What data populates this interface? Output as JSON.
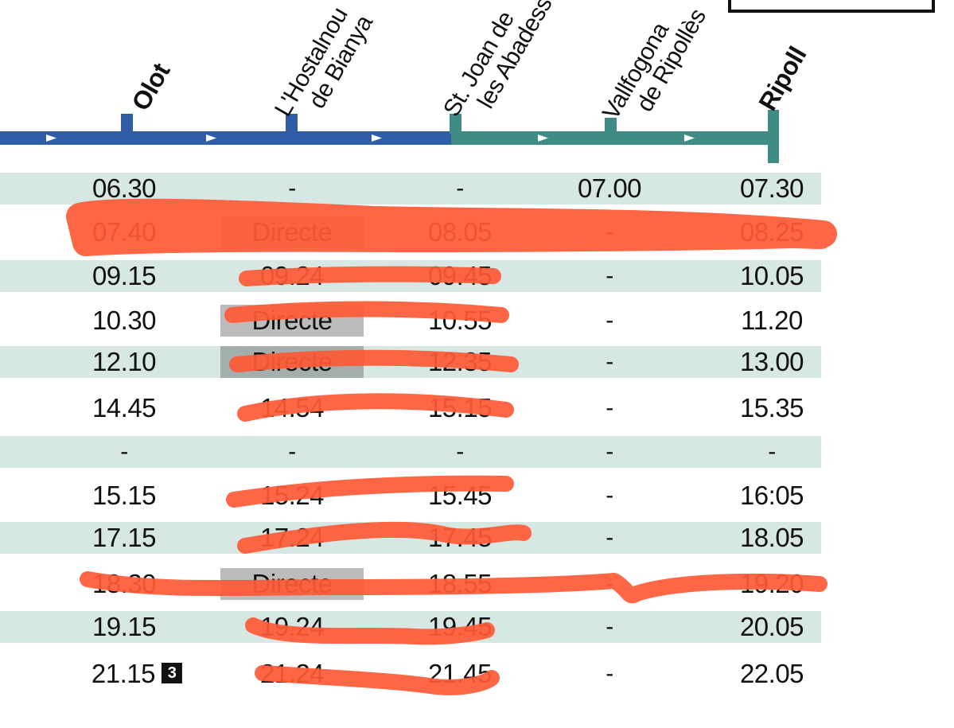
{
  "stations": [
    {
      "name": "Olot",
      "major": true
    },
    {
      "name": "L'Hostalnou de Bianya",
      "line1": "L'Hostalnou",
      "line2": "de Bianya",
      "major": false
    },
    {
      "name": "St. Joan de les Abadesses",
      "line1": "St. Joan de",
      "line2": "les Abadesses",
      "major": false
    },
    {
      "name": "Vallfogona de Ripollès",
      "line1": "Vallfogona",
      "line2": "de Ripollès",
      "major": false
    },
    {
      "name": "Ripoll",
      "major": true
    }
  ],
  "colors": {
    "route_blue": "#2f5ea6",
    "route_teal": "#3f8c84",
    "row_shade": "#d6e7e4",
    "marker": "#ff5a36"
  },
  "timetable": [
    {
      "shaded": true,
      "times": [
        "06.30",
        "-",
        "-",
        "07.00",
        "07.30"
      ]
    },
    {
      "shaded": false,
      "times": [
        "07.40",
        "Directe",
        "08.05",
        "-",
        "08.25"
      ]
    },
    {
      "shaded": true,
      "times": [
        "09.15",
        "09.24",
        "09.45",
        "-",
        "10.05"
      ]
    },
    {
      "shaded": false,
      "times": [
        "10.30",
        "Directe",
        "10.55",
        "-",
        "11.20"
      ]
    },
    {
      "shaded": true,
      "times": [
        "12.10",
        "Directe",
        "12.35",
        "-",
        "13.00"
      ]
    },
    {
      "shaded": false,
      "times": [
        "14.45",
        "14.54",
        "15.15",
        "-",
        "15.35"
      ]
    },
    {
      "shaded": true,
      "times": [
        "-",
        "-",
        "-",
        "-",
        "-"
      ]
    },
    {
      "shaded": false,
      "times": [
        "15.15",
        "15.24",
        "15.45",
        "-",
        "16:05"
      ]
    },
    {
      "shaded": true,
      "times": [
        "17.15",
        "17.24",
        "17.45",
        "-",
        "18.05"
      ]
    },
    {
      "shaded": false,
      "times": [
        "18.30",
        "Directe",
        "18.55",
        "-",
        "19.20"
      ]
    },
    {
      "shaded": true,
      "times": [
        "19.15",
        "19.24",
        "19.45",
        "-",
        "20.05"
      ]
    },
    {
      "shaded": false,
      "times": [
        "21.15",
        "21.24",
        "21.45",
        "-",
        "22.05"
      ],
      "note": "3"
    }
  ]
}
